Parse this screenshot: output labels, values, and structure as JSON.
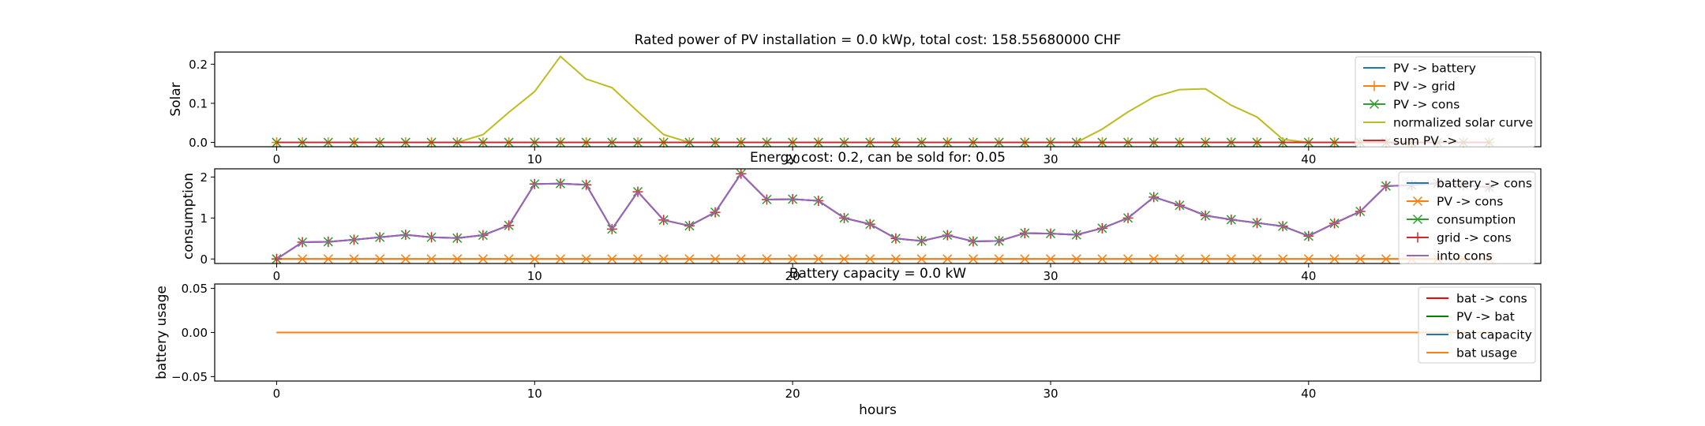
{
  "chart_data": [
    {
      "type": "line",
      "title": "Rated power of PV installation = 0.0 kWp, total cost: 158.55680000 CHF",
      "xlabel": "",
      "ylabel": "Solar",
      "xlim": [
        -2.4,
        49
      ],
      "ylim": [
        -0.011,
        0.231
      ],
      "xticks": [
        0,
        10,
        20,
        30,
        40
      ],
      "yticks": [
        0.0,
        0.1,
        0.2
      ],
      "yticklabels": [
        "0.0",
        "0.1",
        "0.2"
      ],
      "legend_position": "top-right",
      "series": [
        {
          "name": "PV -> battery",
          "color": "#1f77b4",
          "marker": "none",
          "values": [
            0,
            0,
            0,
            0,
            0,
            0,
            0,
            0,
            0,
            0,
            0,
            0,
            0,
            0,
            0,
            0,
            0,
            0,
            0,
            0,
            0,
            0,
            0,
            0,
            0,
            0,
            0,
            0,
            0,
            0,
            0,
            0,
            0,
            0,
            0,
            0,
            0,
            0,
            0,
            0,
            0,
            0,
            0,
            0,
            0,
            0,
            0,
            0
          ]
        },
        {
          "name": "PV -> grid",
          "color": "#ff7f0e",
          "marker": "plus",
          "values": [
            0,
            0,
            0,
            0,
            0,
            0,
            0,
            0,
            0,
            0,
            0,
            0,
            0,
            0,
            0,
            0,
            0,
            0,
            0,
            0,
            0,
            0,
            0,
            0,
            0,
            0,
            0,
            0,
            0,
            0,
            0,
            0,
            0,
            0,
            0,
            0,
            0,
            0,
            0,
            0,
            0,
            0,
            0,
            0,
            0,
            0,
            0,
            0
          ]
        },
        {
          "name": "PV -> cons",
          "color": "#2ca02c",
          "marker": "x",
          "values": [
            0,
            0,
            0,
            0,
            0,
            0,
            0,
            0,
            0,
            0,
            0,
            0,
            0,
            0,
            0,
            0,
            0,
            0,
            0,
            0,
            0,
            0,
            0,
            0,
            0,
            0,
            0,
            0,
            0,
            0,
            0,
            0,
            0,
            0,
            0,
            0,
            0,
            0,
            0,
            0,
            0,
            0,
            0,
            0,
            0,
            0,
            0,
            0
          ]
        },
        {
          "name": "normalized solar curve",
          "color": "#bcbd22",
          "marker": "none",
          "values": [
            0,
            0,
            0,
            0,
            0,
            0,
            0,
            0,
            0.02,
            0.077,
            0.13,
            0.22,
            0.162,
            0.14,
            0.079,
            0.02,
            0,
            0,
            0,
            0,
            0,
            0,
            0,
            0,
            0,
            0,
            0,
            0,
            0,
            0,
            0,
            0,
            0.034,
            0.078,
            0.116,
            0.135,
            0.137,
            0.095,
            0.065,
            0.008,
            0,
            0,
            0,
            0,
            0,
            0,
            0,
            0
          ]
        },
        {
          "name": "sum PV ->",
          "color": "#d62728",
          "marker": "none",
          "values": [
            0,
            0,
            0,
            0,
            0,
            0,
            0,
            0,
            0,
            0,
            0,
            0,
            0,
            0,
            0,
            0,
            0,
            0,
            0,
            0,
            0,
            0,
            0,
            0,
            0,
            0,
            0,
            0,
            0,
            0,
            0,
            0,
            0,
            0,
            0,
            0,
            0,
            0,
            0,
            0,
            0,
            0,
            0,
            0,
            0,
            0,
            0,
            0
          ]
        }
      ]
    },
    {
      "type": "line",
      "title": "Energy cost: 0.2, can be sold for: 0.05",
      "xlabel": "",
      "ylabel": "consumption",
      "xlim": [
        -2.4,
        49
      ],
      "ylim": [
        -0.11,
        2.2
      ],
      "xticks": [
        0,
        10,
        20,
        30,
        40
      ],
      "yticks": [
        0,
        1,
        2
      ],
      "yticklabels": [
        "0",
        "1",
        "2"
      ],
      "legend_position": "top-right",
      "series": [
        {
          "name": "battery -> cons",
          "color": "#1f77b4",
          "marker": "none",
          "values": [
            0,
            0,
            0,
            0,
            0,
            0,
            0,
            0,
            0,
            0,
            0,
            0,
            0,
            0,
            0,
            0,
            0,
            0,
            0,
            0,
            0,
            0,
            0,
            0,
            0,
            0,
            0,
            0,
            0,
            0,
            0,
            0,
            0,
            0,
            0,
            0,
            0,
            0,
            0,
            0,
            0,
            0,
            0,
            0,
            0,
            0,
            0,
            0
          ]
        },
        {
          "name": "PV -> cons",
          "color": "#ff7f0e",
          "marker": "x",
          "values": [
            0,
            0,
            0,
            0,
            0,
            0,
            0,
            0,
            0,
            0,
            0,
            0,
            0,
            0,
            0,
            0,
            0,
            0,
            0,
            0,
            0,
            0,
            0,
            0,
            0,
            0,
            0,
            0,
            0,
            0,
            0,
            0,
            0,
            0,
            0,
            0,
            0,
            0,
            0,
            0,
            0,
            0,
            0,
            0,
            0,
            0,
            0,
            0
          ]
        },
        {
          "name": "consumption",
          "color": "#2ca02c",
          "marker": "x",
          "values": [
            0,
            0.41,
            0.42,
            0.47,
            0.53,
            0.59,
            0.53,
            0.51,
            0.58,
            0.82,
            1.83,
            1.84,
            1.81,
            0.73,
            1.64,
            0.95,
            0.81,
            1.14,
            2.08,
            1.45,
            1.46,
            1.42,
            1.0,
            0.85,
            0.5,
            0.44,
            0.58,
            0.43,
            0.44,
            0.63,
            0.62,
            0.59,
            0.75,
            1.0,
            1.51,
            1.31,
            1.06,
            0.96,
            0.88,
            0.8,
            0.56,
            0.87,
            1.16,
            1.78,
            1.8,
            1.85,
            1.8,
            1.75
          ]
        },
        {
          "name": "grid -> cons",
          "color": "#d62728",
          "marker": "plus",
          "values": [
            0,
            0.41,
            0.42,
            0.47,
            0.53,
            0.59,
            0.53,
            0.51,
            0.58,
            0.82,
            1.83,
            1.84,
            1.81,
            0.73,
            1.64,
            0.95,
            0.81,
            1.14,
            2.08,
            1.45,
            1.46,
            1.42,
            1.0,
            0.85,
            0.5,
            0.44,
            0.58,
            0.43,
            0.44,
            0.63,
            0.62,
            0.59,
            0.75,
            1.0,
            1.51,
            1.31,
            1.06,
            0.96,
            0.88,
            0.8,
            0.56,
            0.87,
            1.16,
            1.78,
            1.8,
            1.85,
            1.8,
            1.75
          ]
        },
        {
          "name": "into cons",
          "color": "#9467bd",
          "marker": "none",
          "values": [
            0,
            0.41,
            0.42,
            0.47,
            0.53,
            0.59,
            0.53,
            0.51,
            0.58,
            0.82,
            1.83,
            1.84,
            1.81,
            0.73,
            1.64,
            0.95,
            0.81,
            1.14,
            2.08,
            1.45,
            1.46,
            1.42,
            1.0,
            0.85,
            0.5,
            0.44,
            0.58,
            0.43,
            0.44,
            0.63,
            0.62,
            0.59,
            0.75,
            1.0,
            1.51,
            1.31,
            1.06,
            0.96,
            0.88,
            0.8,
            0.56,
            0.87,
            1.16,
            1.78,
            1.8,
            1.85,
            1.8,
            1.75
          ]
        }
      ]
    },
    {
      "type": "line",
      "title": "Battery capacity = 0.0 kW",
      "xlabel": "hours",
      "ylabel": "battery usage",
      "xlim": [
        -2.4,
        49
      ],
      "ylim": [
        -0.055,
        0.055
      ],
      "xticks": [
        0,
        10,
        20,
        30,
        40
      ],
      "yticks": [
        -0.05,
        0.0,
        0.05
      ],
      "yticklabels": [
        "−0.05",
        "0.00",
        "0.05"
      ],
      "legend_position": "top-right",
      "series": [
        {
          "name": "bat -> cons",
          "color": "#ff0000",
          "marker": "none",
          "values": [
            0,
            0,
            0,
            0,
            0,
            0,
            0,
            0,
            0,
            0,
            0,
            0,
            0,
            0,
            0,
            0,
            0,
            0,
            0,
            0,
            0,
            0,
            0,
            0,
            0,
            0,
            0,
            0,
            0,
            0,
            0,
            0,
            0,
            0,
            0,
            0,
            0,
            0,
            0,
            0,
            0,
            0,
            0,
            0,
            0,
            0,
            0,
            0
          ]
        },
        {
          "name": "PV -> bat",
          "color": "#008000",
          "marker": "none",
          "values": [
            0,
            0,
            0,
            0,
            0,
            0,
            0,
            0,
            0,
            0,
            0,
            0,
            0,
            0,
            0,
            0,
            0,
            0,
            0,
            0,
            0,
            0,
            0,
            0,
            0,
            0,
            0,
            0,
            0,
            0,
            0,
            0,
            0,
            0,
            0,
            0,
            0,
            0,
            0,
            0,
            0,
            0,
            0,
            0,
            0,
            0,
            0,
            0
          ]
        },
        {
          "name": "bat capacity",
          "color": "#1f77b4",
          "marker": "none",
          "values": [
            0,
            0,
            0,
            0,
            0,
            0,
            0,
            0,
            0,
            0,
            0,
            0,
            0,
            0,
            0,
            0,
            0,
            0,
            0,
            0,
            0,
            0,
            0,
            0,
            0,
            0,
            0,
            0,
            0,
            0,
            0,
            0,
            0,
            0,
            0,
            0,
            0,
            0,
            0,
            0,
            0,
            0,
            0,
            0,
            0,
            0,
            0,
            0
          ]
        },
        {
          "name": "bat usage",
          "color": "#ff7f0e",
          "marker": "none",
          "values": [
            0,
            0,
            0,
            0,
            0,
            0,
            0,
            0,
            0,
            0,
            0,
            0,
            0,
            0,
            0,
            0,
            0,
            0,
            0,
            0,
            0,
            0,
            0,
            0,
            0,
            0,
            0,
            0,
            0,
            0,
            0,
            0,
            0,
            0,
            0,
            0,
            0,
            0,
            0,
            0,
            0,
            0,
            0,
            0,
            0,
            0,
            0,
            0
          ]
        }
      ]
    }
  ]
}
